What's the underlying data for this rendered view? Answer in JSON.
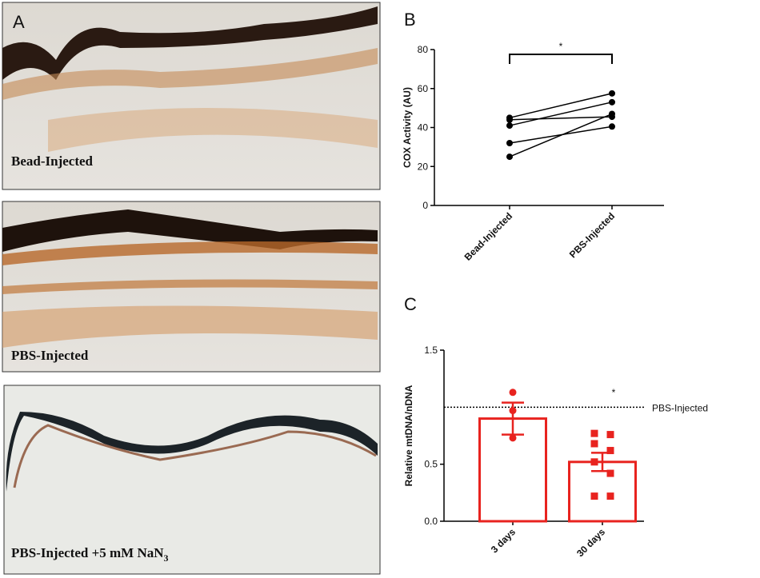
{
  "panel_labels": [
    "A",
    "B",
    "C"
  ],
  "captions": [
    {
      "text": "Bead-Injected"
    },
    {
      "text": "PBS-Injected"
    },
    {
      "text": "PBS-Injected +5 mM NaN",
      "subscript": "3"
    }
  ],
  "chart_data": [
    {
      "type": "paired",
      "y_label": "COX Activity (AU)",
      "categories": [
        "Bead-Injected",
        "PBS-Injected"
      ],
      "series": [
        {
          "color": "#000000",
          "values": [
            45,
            57.5
          ]
        },
        {
          "color": "#000000",
          "values": [
            44,
            45.5
          ]
        },
        {
          "color": "#000000",
          "values": [
            41,
            53
          ]
        },
        {
          "color": "#000000",
          "values": [
            32,
            40.5
          ]
        },
        {
          "color": "#000000",
          "values": [
            25,
            47
          ]
        }
      ],
      "ylim": [
        0,
        80
      ],
      "yticks": [
        0,
        20,
        40,
        60,
        80
      ],
      "annotation": "*"
    },
    {
      "type": "bar",
      "y_label": "Relative mtDNA/nDNA",
      "categories": [
        "3 days",
        "30 days"
      ],
      "color": "#e8231f",
      "values": [
        0.9,
        0.52
      ],
      "errors": [
        0.14,
        0.08
      ],
      "points": [
        [
          1.13,
          0.97,
          0.73
        ],
        [
          0.77,
          0.76,
          0.68,
          0.62,
          0.52,
          0.42,
          0.22,
          0.22
        ]
      ],
      "ylim": [
        0,
        1.5
      ],
      "yticks": [
        {
          "value": 0,
          "label": "0.0"
        },
        {
          "value": 0.5,
          "label": "0.5"
        },
        {
          "value": 1.5,
          "label": "1.5"
        }
      ],
      "reference_line": {
        "value": 1.0,
        "label": "PBS-Injected"
      },
      "annotation": "*"
    }
  ]
}
